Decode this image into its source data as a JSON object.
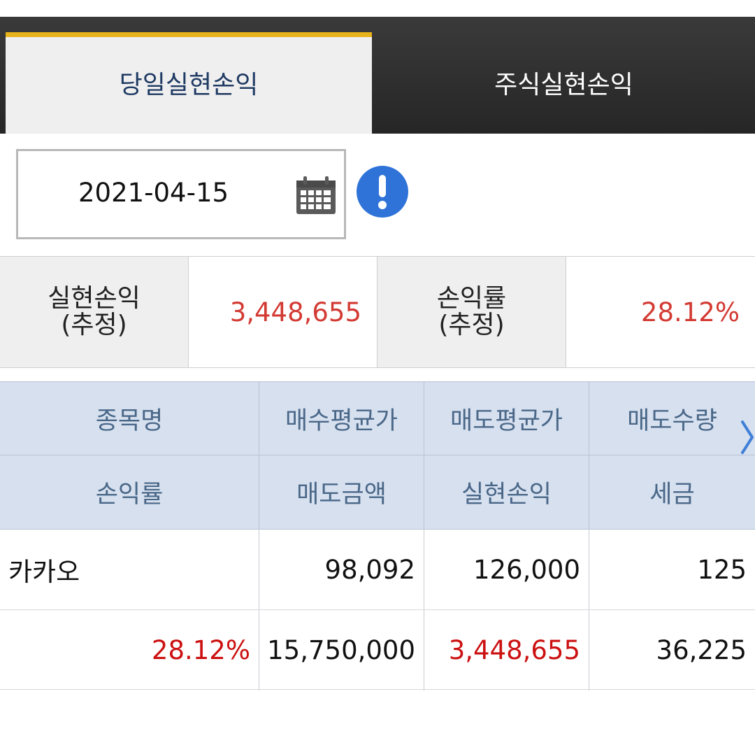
{
  "tabs": {
    "active_label": "당일실현손익",
    "inactive_label": "주식실현손익"
  },
  "date": {
    "value": "2021-04-15"
  },
  "icons": {
    "calendar": "calendar-icon",
    "info": "info-icon",
    "scroll": "chevron-right-icon"
  },
  "summary": {
    "realized_label_line1": "실현손익",
    "realized_label_line2": "(추정)",
    "realized_value": "3,448,655",
    "rate_label_line1": "손익률",
    "rate_label_line2": "(추정)",
    "rate_value": "28.12%"
  },
  "table": {
    "headers_row1": [
      "종목명",
      "매수평균가",
      "매도평균가",
      "매도수량"
    ],
    "headers_row2": [
      "손익률",
      "매도금액",
      "실현손익",
      "세금"
    ],
    "rows": [
      {
        "name": "카카오",
        "avg_buy": "98,092",
        "avg_sell": "126,000",
        "sell_qty": "125",
        "rate": "28.12%",
        "sell_amount": "15,750,000",
        "realized": "3,448,655",
        "tax": "36,225"
      }
    ]
  },
  "colors": {
    "accent": "#e8b21a",
    "profit_red": "#cc1111",
    "header_blue": "#d6e0ef",
    "info_blue": "#2f73d9"
  }
}
